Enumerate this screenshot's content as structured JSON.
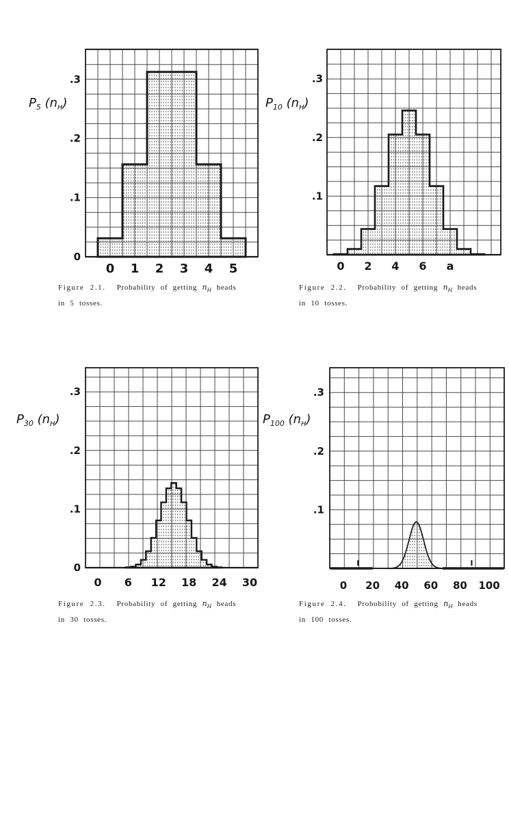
{
  "colors": {
    "background": "#ffffff",
    "ink": "#1a1a1a",
    "grid": "#474747",
    "stipple": "#5f5f5f"
  },
  "captions": [
    {
      "label": "Figure 2.1.",
      "pre": "Probability of getting",
      "var": "n",
      "var_sub": "H",
      "post": "heads",
      "line2": "in 5 tosses."
    },
    {
      "label": "Figure 2.2.",
      "pre": "Probability of getting",
      "var": "n",
      "var_sub": "H",
      "post": "heads",
      "line2": "in 10 tosses."
    },
    {
      "label": "Figure 2.3.",
      "pre": "Probability of getting",
      "var": "n",
      "var_sub": "H",
      "post": "heads",
      "line2": "in 30 tosses."
    },
    {
      "label": "Figure 2.4.",
      "pre": "Probobility of getting",
      "var": "n",
      "var_sub": "H",
      "post": "heads",
      "line2": "in 100 tosses."
    }
  ],
  "chart_data": [
    {
      "id": "2.1",
      "type": "bar",
      "style": "step-histogram",
      "title": "Figure 2.1. Probability of getting nH heads in 5 tosses.",
      "n_tosses": 5,
      "xlabel": "",
      "ylabel": "P5(nH)",
      "y_label_parts": {
        "base": "P",
        "sub": "5",
        "open": " (",
        "var": "n",
        "var_sub": "H",
        "close": ")"
      },
      "x": [
        0,
        1,
        2,
        3,
        4,
        5
      ],
      "p": [
        0.03125,
        0.15625,
        0.3125,
        0.3125,
        0.15625,
        0.03125
      ],
      "x_ticks": [
        {
          "v": 0,
          "t": "0"
        },
        {
          "v": 1,
          "t": "1"
        },
        {
          "v": 2,
          "t": "2"
        },
        {
          "v": 3,
          "t": "3"
        },
        {
          "v": 4,
          "t": "4"
        },
        {
          "v": 5,
          "t": "5"
        }
      ],
      "y_ticks": [
        {
          "v": 0,
          "t": "0"
        },
        {
          "v": 0.1,
          "t": ".1"
        },
        {
          "v": 0.2,
          "t": ".2"
        },
        {
          "v": 0.3,
          "t": ".3"
        }
      ],
      "ylim": [
        0,
        0.35
      ],
      "grid": true
    },
    {
      "id": "2.2",
      "type": "bar",
      "style": "step-histogram",
      "title": "Figure 2.2. Probability of getting nH heads in 10 tosses.",
      "n_tosses": 10,
      "xlabel": "",
      "ylabel": "P10(nH)",
      "y_label_parts": {
        "base": "P",
        "sub": "10",
        "open": " (",
        "var": "n",
        "var_sub": "H",
        "close": ")"
      },
      "x": [
        0,
        1,
        2,
        3,
        4,
        5,
        6,
        7,
        8,
        9,
        10
      ],
      "p": [
        0.001,
        0.0098,
        0.0439,
        0.1172,
        0.2051,
        0.2461,
        0.2051,
        0.1172,
        0.0439,
        0.0098,
        0.001
      ],
      "x_ticks": [
        {
          "v": 0,
          "t": "0"
        },
        {
          "v": 2,
          "t": "2"
        },
        {
          "v": 4,
          "t": "4"
        },
        {
          "v": 6,
          "t": "6"
        },
        {
          "v": 8,
          "t": "a"
        }
      ],
      "y_ticks": [
        {
          "v": 0.1,
          "t": ".1"
        },
        {
          "v": 0.2,
          "t": ".2"
        },
        {
          "v": 0.3,
          "t": ".3"
        }
      ],
      "ylim": [
        0,
        0.35
      ],
      "grid": true
    },
    {
      "id": "2.3",
      "type": "bar",
      "style": "step-histogram",
      "title": "Figure 2.3. Probability of getting nH heads in 30 tosses.",
      "n_tosses": 30,
      "xlabel": "",
      "ylabel": "P30(nH)",
      "y_label_parts": {
        "base": "P",
        "sub": "30",
        "open": " (",
        "var": "n",
        "var_sub": "H",
        "close": ")"
      },
      "x": [
        0,
        1,
        2,
        3,
        4,
        5,
        6,
        7,
        8,
        9,
        10,
        11,
        12,
        13,
        14,
        15,
        16,
        17,
        18,
        19,
        20,
        21,
        22,
        23,
        24,
        25,
        26,
        27,
        28,
        29,
        30
      ],
      "p": [
        0,
        0,
        0,
        0,
        0,
        0.0001,
        0.0006,
        0.0019,
        0.0055,
        0.0133,
        0.028,
        0.0509,
        0.0806,
        0.1115,
        0.1354,
        0.1445,
        0.1354,
        0.1115,
        0.0806,
        0.0509,
        0.028,
        0.0133,
        0.0055,
        0.0019,
        0.0006,
        0.0001,
        0,
        0,
        0,
        0,
        0
      ],
      "x_ticks": [
        {
          "v": 0,
          "t": "0"
        },
        {
          "v": 6,
          "t": "6"
        },
        {
          "v": 12,
          "t": "12"
        },
        {
          "v": 18,
          "t": "18"
        },
        {
          "v": 24,
          "t": "24"
        },
        {
          "v": 30,
          "t": "30"
        }
      ],
      "y_ticks": [
        {
          "v": 0,
          "t": "0"
        },
        {
          "v": 0.1,
          "t": ".1"
        },
        {
          "v": 0.2,
          "t": ".2"
        },
        {
          "v": 0.3,
          "t": ".3"
        }
      ],
      "ylim": [
        0,
        0.35
      ],
      "grid": true
    },
    {
      "id": "2.4",
      "type": "area",
      "style": "smooth-bell",
      "title": "Figure 2.4. Probobility of getting nH heads in 100 tosses.",
      "n_tosses": 100,
      "xlabel": "",
      "ylabel": "P100(nH)",
      "y_label_parts": {
        "base": "P",
        "sub": "100",
        "open": " (",
        "var": "n",
        "var_sub": "H",
        "close": ")"
      },
      "x": [
        30,
        31,
        32,
        33,
        34,
        35,
        36,
        37,
        38,
        39,
        40,
        41,
        42,
        43,
        44,
        45,
        46,
        47,
        48,
        49,
        50,
        51,
        52,
        53,
        54,
        55,
        56,
        57,
        58,
        59,
        60,
        61,
        62,
        63,
        64,
        65,
        66,
        67,
        68,
        69,
        70
      ],
      "p": [
        0.0,
        0.0001,
        0.0001,
        0.0002,
        0.0005,
        0.0009,
        0.0016,
        0.0027,
        0.0045,
        0.0071,
        0.0108,
        0.0158,
        0.0221,
        0.0299,
        0.0387,
        0.0483,
        0.0578,
        0.0665,
        0.0735,
        0.078,
        0.0796,
        0.078,
        0.0735,
        0.0665,
        0.0578,
        0.0483,
        0.0387,
        0.0299,
        0.0221,
        0.0158,
        0.0108,
        0.0071,
        0.0045,
        0.0027,
        0.0016,
        0.0009,
        0.0005,
        0.0002,
        0.0001,
        0.0001,
        0.0
      ],
      "x_ticks": [
        {
          "v": 0,
          "t": "0"
        },
        {
          "v": 20,
          "t": "20"
        },
        {
          "v": 40,
          "t": "40"
        },
        {
          "v": 60,
          "t": "60"
        },
        {
          "v": 80,
          "t": "80"
        },
        {
          "v": 100,
          "t": "100"
        }
      ],
      "y_ticks": [
        {
          "v": 0.1,
          "t": ".1"
        },
        {
          "v": 0.2,
          "t": ".2"
        },
        {
          "v": 0.3,
          "t": ".3"
        }
      ],
      "ylim": [
        0,
        0.35
      ],
      "grid": true,
      "decorations": {
        "baseline_marks": [
          {
            "x": 10,
            "glyph": "I"
          },
          {
            "x": 88,
            "glyph": "I"
          }
        ],
        "thick_baseline_segments": [
          [
            -9,
            20
          ],
          [
            68,
            110
          ]
        ]
      }
    }
  ]
}
